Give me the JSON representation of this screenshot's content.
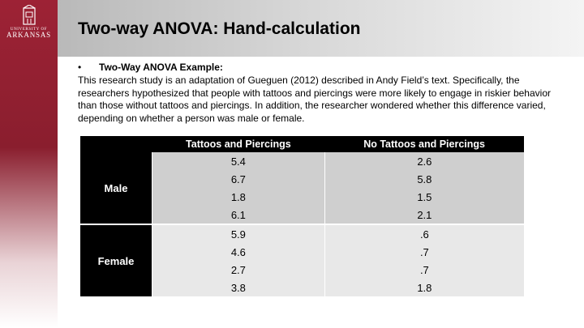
{
  "logo": {
    "top_text": "UNIVERSITY OF",
    "bottom_text": "ARKANSAS"
  },
  "slide": {
    "title": "Two-way ANOVA: Hand-calculation",
    "bullet_symbol": "•",
    "bullet_label": "Two-Way ANOVA Example:",
    "paragraph": "This research study is an adaptation of Gueguen (2012) described in Andy Field’s text.  Specifically, the researchers hypothesized that people with tattoos and piercings were more likely to engage in riskier behavior than those without tattoos and piercings.  In addition, the researcher wondered whether this difference varied, depending on whether a person was male or female."
  },
  "table": {
    "headers": [
      "",
      "Tattoos and Piercings",
      "No Tattoos and Piercings"
    ],
    "groups": [
      {
        "label": "Male",
        "rows": [
          [
            "5.4",
            "2.6"
          ],
          [
            "6.7",
            "5.8"
          ],
          [
            "1.8",
            "1.5"
          ],
          [
            "6.1",
            "2.1"
          ]
        ]
      },
      {
        "label": "Female",
        "rows": [
          [
            "5.9",
            ".6"
          ],
          [
            "4.6",
            ".7"
          ],
          [
            "2.7",
            ".7"
          ],
          [
            "3.8",
            "1.8"
          ]
        ]
      }
    ]
  },
  "colors": {
    "accent": "#9d2235",
    "header_bg": "#000000",
    "male_bg": "#cfcfcf",
    "female_bg": "#e8e8e8"
  }
}
